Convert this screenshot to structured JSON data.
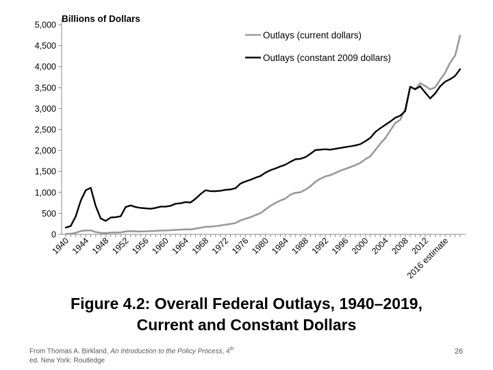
{
  "chart_data": {
    "type": "line",
    "title": "",
    "ylabel": "Billions of Dollars",
    "xlabel": "",
    "ylim": [
      0,
      5000
    ],
    "yticks": [
      0,
      500,
      1000,
      1500,
      2000,
      2500,
      3000,
      3500,
      4000,
      4500,
      5000
    ],
    "ytick_labels": [
      "0",
      "500",
      "1,000",
      "1,500",
      "2,000",
      "2,500",
      "3,000",
      "3,500",
      "4,000",
      "4,500",
      "5,000"
    ],
    "xtick_labels": [
      "1940",
      "1944",
      "1948",
      "1952",
      "1956",
      "1960",
      "1964",
      "1968",
      "1972",
      "1976",
      "1980",
      "1984",
      "1988",
      "1992",
      "1996",
      "2000",
      "2004",
      "2008",
      "2012",
      "2016 estimate"
    ],
    "grid": false,
    "legend_position": "top-right",
    "x": [
      1940,
      1941,
      1942,
      1943,
      1944,
      1945,
      1946,
      1947,
      1948,
      1949,
      1950,
      1951,
      1952,
      1953,
      1954,
      1955,
      1956,
      1957,
      1958,
      1959,
      1960,
      1961,
      1962,
      1963,
      1964,
      1965,
      1966,
      1967,
      1968,
      1969,
      1970,
      1971,
      1972,
      1973,
      1974,
      1975,
      1976,
      1977,
      1978,
      1979,
      1980,
      1981,
      1982,
      1983,
      1984,
      1985,
      1986,
      1987,
      1988,
      1989,
      1990,
      1991,
      1992,
      1993,
      1994,
      1995,
      1996,
      1997,
      1998,
      1999,
      2000,
      2001,
      2002,
      2003,
      2004,
      2005,
      2006,
      2007,
      2008,
      2009,
      2010,
      2011,
      2012,
      2013,
      2014,
      2015,
      2016,
      2017,
      2018,
      2019
    ],
    "series": [
      {
        "name": "Outlays (current dollars)",
        "color": "#999999",
        "values": [
          10,
          14,
          35,
          79,
          91,
          93,
          55,
          35,
          30,
          39,
          43,
          46,
          68,
          76,
          71,
          68,
          71,
          77,
          82,
          92,
          92,
          98,
          106,
          111,
          119,
          118,
          135,
          158,
          178,
          183,
          196,
          210,
          231,
          246,
          269,
          332,
          372,
          409,
          459,
          504,
          591,
          678,
          746,
          808,
          852,
          946,
          990,
          1004,
          1065,
          1144,
          1253,
          1324,
          1382,
          1410,
          1462,
          1516,
          1561,
          1601,
          1652,
          1702,
          1789,
          1863,
          2011,
          2160,
          2293,
          2472,
          2655,
          2729,
          2983,
          3518,
          3457,
          3603,
          3537,
          3455,
          3506,
          3688,
          3854,
          4094,
          4265,
          4737
        ]
      },
      {
        "name": "Outlays (constant 2009 dollars)",
        "color": "#000000",
        "values": [
          160,
          200,
          430,
          800,
          1050,
          1110,
          680,
          380,
          320,
          400,
          410,
          430,
          650,
          690,
          650,
          630,
          620,
          610,
          630,
          660,
          660,
          680,
          730,
          740,
          770,
          760,
          850,
          960,
          1050,
          1030,
          1030,
          1040,
          1060,
          1070,
          1100,
          1210,
          1260,
          1300,
          1350,
          1390,
          1470,
          1530,
          1570,
          1620,
          1660,
          1730,
          1790,
          1800,
          1840,
          1920,
          2010,
          2020,
          2030,
          2020,
          2040,
          2060,
          2080,
          2100,
          2120,
          2150,
          2220,
          2300,
          2440,
          2530,
          2610,
          2690,
          2780,
          2830,
          2940,
          3520,
          3460,
          3530,
          3380,
          3240,
          3360,
          3530,
          3640,
          3700,
          3780,
          3940
        ]
      }
    ]
  },
  "figure": {
    "caption_line1": "Figure 4.2: Overall Federal Outlays, 1940–2019,",
    "caption_line2": "Current and Constant Dollars"
  },
  "source": {
    "prefix": "From Thomas A. Birkland, ",
    "book_title": "An Introduction to the Policy Process",
    "edition_num": ", 4",
    "edition_sup": "th",
    "suffix": " ed. New York: Routledge"
  },
  "page_number": "26"
}
